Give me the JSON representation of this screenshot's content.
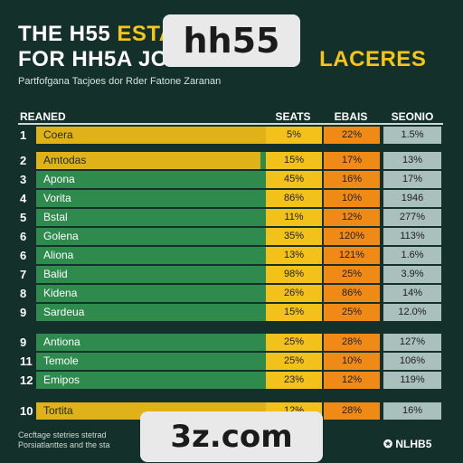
{
  "header": {
    "title_line1_main": "THE H55 ",
    "title_line1_accent": "ESTAT",
    "title_line2_main": "FOR HH5A JOG",
    "title_line2_accent": "LACERES",
    "subtitle": "Partfofgana Tacjoes dor Rder Fatone Zaranan"
  },
  "watermarks": {
    "top": "hh55",
    "bottom": "3z.com"
  },
  "logo": "✪ NLHB5",
  "footnote": "Cecftage stetries stetrad\nPorsiatlanttes and the sta",
  "chart_data": {
    "type": "table",
    "columns": [
      "REANED",
      "SEATS",
      "EBAIS",
      "SEONIO"
    ],
    "rows": [
      {
        "rank": "1",
        "name": "Coera",
        "highlight": 1.0,
        "seats": "5%",
        "ebais": "22%",
        "seonio": "1.5%"
      },
      {
        "rank": "2",
        "name": "Amtodas",
        "highlight": 0.9,
        "seats": "15%",
        "ebais": "17%",
        "seonio": "13%"
      },
      {
        "rank": "3",
        "name": "Apona",
        "highlight": 0,
        "seats": "45%",
        "ebais": "16%",
        "seonio": "17%"
      },
      {
        "rank": "4",
        "name": "Vorita",
        "highlight": 0,
        "seats": "86%",
        "ebais": "10%",
        "seonio": "1946"
      },
      {
        "rank": "5",
        "name": "Bstal",
        "highlight": 0,
        "seats": "11%",
        "ebais": "12%",
        "seonio": "277%"
      },
      {
        "rank": "6",
        "name": "Golena",
        "highlight": 0,
        "seats": "35%",
        "ebais": "120%",
        "seonio": "113%"
      },
      {
        "rank": "6",
        "name": "Aliona",
        "highlight": 0,
        "seats": "13%",
        "ebais": "121%",
        "seonio": "1.6%"
      },
      {
        "rank": "7",
        "name": "Balid",
        "highlight": 0,
        "seats": "98%",
        "ebais": "25%",
        "seonio": "3.9%"
      },
      {
        "rank": "8",
        "name": "Kidena",
        "highlight": 0,
        "seats": "26%",
        "ebais": "86%",
        "seonio": "14%"
      },
      {
        "rank": "9",
        "name": "Sardeua",
        "highlight": 0,
        "seats": "15%",
        "ebais": "25%",
        "seonio": "12.0%"
      },
      {
        "rank": "9",
        "name": "Antiona",
        "highlight": 0,
        "seats": "25%",
        "ebais": "28%",
        "seonio": "127%"
      },
      {
        "rank": "11",
        "name": "Temole",
        "highlight": 0,
        "seats": "25%",
        "ebais": "10%",
        "seonio": "106%"
      },
      {
        "rank": "12",
        "name": "Emipos",
        "highlight": 0,
        "seats": "23%",
        "ebais": "12%",
        "seonio": "119%"
      },
      {
        "rank": "10",
        "name": "Tortita",
        "highlight": 1.0,
        "seats": "12%",
        "ebais": "28%",
        "seonio": "16%"
      }
    ]
  }
}
